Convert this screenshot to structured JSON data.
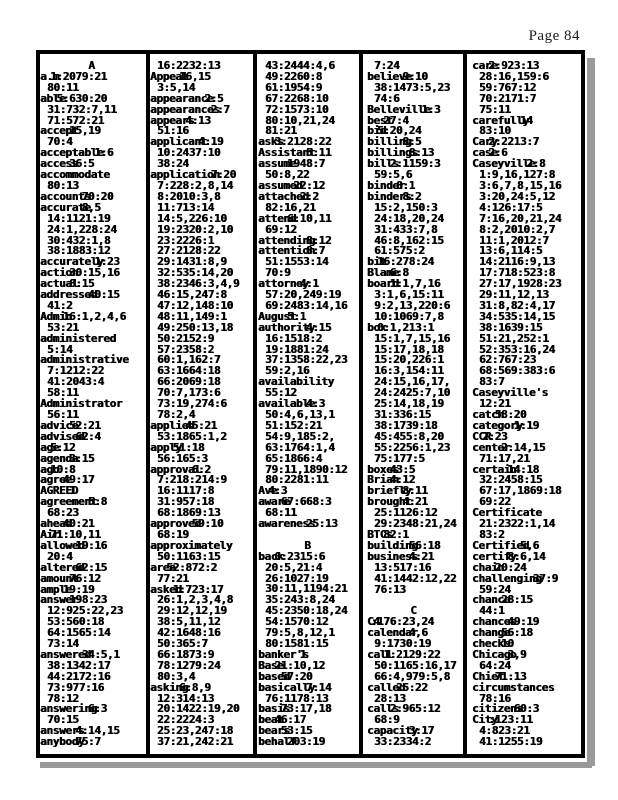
{
  "page_label": "Page 84",
  "columns": [
    {
      "blocks": [
        {
          "h": "A"
        },
        {
          "w": "a.m",
          "r": "1:2079:21",
          "c": [
            "80:11"
          ]
        },
        {
          "w": "able",
          "r": "5:630:20",
          "c": [
            "31:732:7,11",
            "71:572:21"
          ]
        },
        {
          "w": "accept",
          "r": "15,19",
          "c": [
            "70:4"
          ]
        },
        {
          "w": "acceptable",
          "r": "1:6"
        },
        {
          "w": "access",
          "r": "36:5"
        },
        {
          "w": "accommodate",
          "c": [
            "80:13"
          ]
        },
        {
          "w": "accounts",
          "r": "70:20"
        },
        {
          "w": "accurate",
          "r": "8,5",
          "c": [
            "14:1121:19",
            "24:1,228:24",
            "30:432:1,8",
            "38:1883:12"
          ]
        },
        {
          "w": "accurately",
          "r": "1:23"
        },
        {
          "w": "action",
          "r": "30:15,16"
        },
        {
          "w": "actual",
          "r": "8:15"
        },
        {
          "w": "addressed",
          "r": "40:15",
          "c": [
            "41:2"
          ]
        },
        {
          "w": "Admin",
          "r": "16:1,2,4,6",
          "c": [
            "53:21"
          ]
        },
        {
          "w": "administered",
          "c": [
            "5:14"
          ]
        },
        {
          "w": "administrative",
          "c": [
            "7:1212:22",
            "41:2043:4",
            "58:11"
          ]
        },
        {
          "w": "Administrator",
          "c": [
            "56:11"
          ]
        },
        {
          "w": "advice",
          "r": "52:21"
        },
        {
          "w": "advised",
          "r": "62:4"
        },
        {
          "w": "age",
          "r": "5:12"
        },
        {
          "w": "agenda",
          "r": "3:15"
        },
        {
          "w": "ago",
          "r": "10:8"
        },
        {
          "w": "agree",
          "r": "49:17"
        },
        {
          "w": "AGREED",
          "r": "1"
        },
        {
          "w": "agreement",
          "r": "5:8",
          "c": [
            "68:23"
          ]
        },
        {
          "w": "ahead",
          "r": "40:21"
        },
        {
          "w": "Air",
          "r": "71:10,11"
        },
        {
          "w": "allowed",
          "r": "19:16",
          "c": [
            "20:4"
          ]
        },
        {
          "w": "altered",
          "r": "62:15"
        },
        {
          "w": "amount",
          "r": "76:12"
        },
        {
          "w": "ample",
          "r": "19:19"
        },
        {
          "w": "answer",
          "r": "198:23",
          "c": [
            "12:925:22,23",
            "53:560:18",
            "64:1565:14",
            "73:14"
          ]
        },
        {
          "w": "answered",
          "r": "34:5,1",
          "c": [
            "38:1342:17",
            "44:2172:16",
            "73:977:16",
            "78:12"
          ]
        },
        {
          "w": "answering",
          "r": "6:3",
          "c": [
            "70:15"
          ]
        },
        {
          "w": "answers",
          "r": "4:14,15"
        },
        {
          "w": "anybody",
          "r": "75:7"
        }
      ]
    },
    {
      "blocks": [
        {
          "c": [
            "16:2232:13"
          ]
        },
        {
          "w": "Appeal",
          "r": "16,15",
          "c": [
            "3:5,14"
          ]
        },
        {
          "w": "appearance",
          "r": "2:5"
        },
        {
          "w": "appearances",
          "r": "2:7"
        },
        {
          "w": "appears",
          "r": "4:13",
          "c": [
            "51:16"
          ]
        },
        {
          "w": "applicant",
          "r": "4:19",
          "c": [
            "10:2437:10",
            "38:24"
          ]
        },
        {
          "w": "application",
          "r": "7:20",
          "c": [
            "7:228:2,8,14",
            "8:2010:3,8",
            "11:713:14",
            "14:5,226:10",
            "19:2320:2,10",
            "23:2226:1",
            "27:2128:22",
            "29:1431:8,9",
            "32:535:14,20",
            "38:2346:3,4,9",
            "46:15,247:8",
            "47:12,148:10",
            "48:11,149:1",
            "49:250:13,18",
            "50:2152:9",
            "57:2358:2",
            "60:1,162:7",
            "63:1664:18",
            "66:2069:18",
            "70:7,173:6",
            "73:19,274:6",
            "78:2,4"
          ]
        },
        {
          "w": "applied",
          "r": "45:21",
          "c": [
            "53:1865:1,2"
          ]
        },
        {
          "w": "apply",
          "r": "51:18",
          "c": [
            "56:165:3"
          ]
        },
        {
          "w": "approval",
          "r": "6:2",
          "c": [
            "7:218:214:9",
            "16:1117:8",
            "31:957:18",
            "68:1869:13"
          ]
        },
        {
          "w": "approved",
          "r": "59:10",
          "c": [
            "68:19"
          ]
        },
        {
          "w": "approximately",
          "c": [
            "50:1163:15"
          ]
        },
        {
          "w": "area",
          "r": "52:872:2",
          "c": [
            "77:21"
          ]
        },
        {
          "w": "asked",
          "r": "1:723:17",
          "c": [
            "26:1,2,3,4,8",
            "29:12,12,19",
            "38:5,11,12",
            "42:1648:16",
            "50:365:7",
            "66:1873:9",
            "78:1279:24",
            "80:3,4"
          ]
        },
        {
          "w": "asking",
          "r": "6:8,9",
          "c": [
            "12:314:13",
            "20:1422:19,20",
            "22:2224:3",
            "25:23,247:18",
            "37:21,242:21"
          ]
        }
      ]
    },
    {
      "blocks": [
        {
          "c": [
            "43:2444:4,6",
            "49:2260:8",
            "61:1954:9",
            "67:2268:10",
            "72:1573:10",
            "80:10,21,24",
            "81:21"
          ]
        },
        {
          "w": "asks",
          "r": "3:2128:22"
        },
        {
          "w": "Assistant",
          "r": "5:11"
        },
        {
          "w": "assume",
          "r": "1948:7",
          "c": [
            "50:8,22"
          ]
        },
        {
          "w": "assumed",
          "r": "22:12"
        },
        {
          "w": "attached",
          "r": "2:2",
          "c": [
            "82:16,21"
          ]
        },
        {
          "w": "attend",
          "r": "6:10,11",
          "c": [
            "69:12"
          ]
        },
        {
          "w": "attending",
          "r": "8:12"
        },
        {
          "w": "attention",
          "r": "8:7",
          "c": [
            "51:1553:14",
            "70:9"
          ]
        },
        {
          "w": "attorney",
          "r": "4:1",
          "c": [
            "57:20,249:19",
            "69:2483:14,16"
          ]
        },
        {
          "w": "August",
          "r": "5:1"
        },
        {
          "w": "authority",
          "r": "4:15",
          "c": [
            "16:1518:2",
            "19:1881:24",
            "37:1358:22,23",
            "59:2,16"
          ]
        },
        {
          "w": "availability",
          "c": [
            "55:12"
          ]
        },
        {
          "w": "available",
          "r": "4:3",
          "c": [
            "50:4,6,13,1",
            "51:152:21",
            "54:9,185:2,",
            "63:1764:1,4",
            "65:1866:4",
            "79:11,1890:12",
            "80:2281:11"
          ]
        },
        {
          "w": "Ave",
          "r": "4:3"
        },
        {
          "w": "aware",
          "r": "67:668:3",
          "c": [
            "68:11"
          ]
        },
        {
          "w": "awareness",
          "r": "25:13"
        },
        {
          "gap": true
        },
        {
          "h": "B"
        },
        {
          "w": "back",
          "r": "0:2315:6",
          "c": [
            "20:5,21:4",
            "26:1027:19",
            "30:11,1194:21",
            "35:243:8,24",
            "45:2350:18,24",
            "54:1570:12",
            "79:5,8,12,1",
            "80:1581:15"
          ]
        },
        {
          "w": "banker's",
          "r": "1"
        },
        {
          "w": "Base",
          "r": "21:10,12"
        },
        {
          "w": "based",
          "r": "57:20"
        },
        {
          "w": "basically",
          "r": "7:14",
          "c": [
            "76:1178:13"
          ]
        },
        {
          "w": "basis",
          "r": "73:17,18"
        },
        {
          "w": "beat",
          "r": "46:17"
        },
        {
          "w": "bears",
          "r": "53:15"
        },
        {
          "w": "behalf",
          "r": "203:19"
        }
      ]
    },
    {
      "blocks": [
        {
          "c": [
            "7:24"
          ]
        },
        {
          "w": "believe",
          "r": "9:10",
          "c": [
            "38:1473:5,23",
            "74:6"
          ]
        },
        {
          "w": "Belleville",
          "r": "1:3"
        },
        {
          "w": "best",
          "r": "27:4"
        },
        {
          "w": "bid",
          "r": "5:20,24"
        },
        {
          "w": "billing",
          "r": "8:5"
        },
        {
          "w": "billings",
          "r": "8:13"
        },
        {
          "w": "bills",
          "r": "2:1159:3",
          "c": [
            "59:5,6"
          ]
        },
        {
          "w": "binder",
          "r": "8:1"
        },
        {
          "w": "binders",
          "r": "8:2",
          "c": [
            "15:2,150:3",
            "24:18,20,24",
            "31:433:7,8",
            "46:8,162:15",
            "61:575:2"
          ]
        },
        {
          "w": "bit",
          "r": "16:278:24"
        },
        {
          "w": "Blame",
          "r": "6:8"
        },
        {
          "w": "board",
          "r": "1:1,7,16",
          "c": [
            "3:1,6,15:11",
            "9:2,13,220:6",
            "10:1069:7,8"
          ]
        },
        {
          "w": "box",
          "r": "0:1,213:1",
          "c": [
            "15:1,7,15,16",
            "15:17,18,18",
            "15:20,226:1",
            "16:3,154:11",
            "24:15,16,17,",
            "24:2425:7,10",
            "25:14,18,19",
            "31:336:15",
            "38:1739:18",
            "45:455:8,20",
            "55:2256:1,23",
            "75:177:5"
          ]
        },
        {
          "w": "boxes",
          "r": "43:5"
        },
        {
          "w": "Brian",
          "r": "4:12"
        },
        {
          "w": "briefly",
          "r": "8:11"
        },
        {
          "w": "brought",
          "r": "4:21",
          "c": [
            "25:1126:12",
            "29:2348:21,24"
          ]
        },
        {
          "w": "BTCs",
          "r": "82:1"
        },
        {
          "w": "building",
          "r": "56:18"
        },
        {
          "w": "business",
          "r": "4:21",
          "c": [
            "13:517:16",
            "41:1442:12,22",
            "76:13"
          ]
        },
        {
          "gap": true
        },
        {
          "h": "C"
        },
        {
          "w": "C4",
          "r": ":176:23,24"
        },
        {
          "w": "calendar",
          "r": "4,6",
          "c": [
            "9:1730:19"
          ]
        },
        {
          "w": "call",
          "r": "1:2129:22",
          "c": [
            "50:1165:16,17",
            "66:4,979:5,8"
          ]
        },
        {
          "w": "called",
          "r": "25:22",
          "c": [
            "28:13"
          ]
        },
        {
          "w": "calls",
          "r": "2:965:12",
          "c": [
            "68:9"
          ]
        },
        {
          "w": "capacity",
          "r": "3:17",
          "c": [
            "33:2334:2"
          ]
        }
      ]
    },
    {
      "blocks": [
        {
          "w": "care",
          "r": "2:923:13",
          "c": [
            "28:16,159:6",
            "59:767:12",
            "70:2171:7",
            "75:11"
          ]
        },
        {
          "w": "carefully",
          "r": "14",
          "c": [
            "83:10"
          ]
        },
        {
          "w": "Cary",
          "r": "2:2213:7"
        },
        {
          "w": "case",
          "r": "2:6"
        },
        {
          "w": "Caseyville",
          "r": "2:8",
          "c": [
            "1:9,16,127:8",
            "3:6,7,8,15,16",
            "3:20,24:5,12",
            "4:126:17:5",
            "7:16,20,21,24",
            "8:2,2010:2,7",
            "11:1,2012:7",
            "13:6,114:5",
            "14:2116:9,13",
            "17:718:523:8",
            "27:17,1928:23",
            "29:11,12,13",
            "31:8,82:4,17",
            "34:535:14,15",
            "38:1639:15",
            "51:21,252:1",
            "52:353:16,24",
            "62:767:23",
            "68:569:383:6",
            "83:7"
          ]
        },
        {
          "w": "Caseyville's",
          "c": [
            "12:21"
          ]
        },
        {
          "w": "catch",
          "r": "58:20"
        },
        {
          "w": "category",
          "r": "1:19"
        },
        {
          "w": "CCR",
          "r": "2:23"
        },
        {
          "w": "center",
          "r": "2:14,15",
          "c": [
            "71:17,21"
          ]
        },
        {
          "w": "certain",
          "r": "14:18",
          "c": [
            "32:2458:15",
            "67:17,1869:18",
            "69:22"
          ]
        },
        {
          "w": "Certificate",
          "c": [
            "21:2322:1,14",
            "83:2"
          ]
        },
        {
          "w": "Certified",
          "r": "5,6"
        },
        {
          "w": "certify",
          "r": "8:6,14"
        },
        {
          "w": "chain",
          "r": "20:24"
        },
        {
          "w": "challenging",
          "r": "37:9",
          "c": [
            "59:24"
          ]
        },
        {
          "w": "chance",
          "r": "28:15",
          "c": [
            "44:1"
          ]
        },
        {
          "w": "chances",
          "r": "49:19"
        },
        {
          "w": "change",
          "r": "56:18"
        },
        {
          "w": "checks",
          "r": "10"
        },
        {
          "w": "Chicago",
          "r": "3,9",
          "c": [
            "64:24"
          ]
        },
        {
          "w": "Chief",
          "r": "71:13"
        },
        {
          "w": "circumstances",
          "c": [
            "78:16"
          ]
        },
        {
          "w": "citizens",
          "r": "60:3"
        },
        {
          "w": "City",
          "r": ":123:11",
          "c": [
            "4:823:21",
            "41:1255:19"
          ]
        }
      ]
    }
  ]
}
